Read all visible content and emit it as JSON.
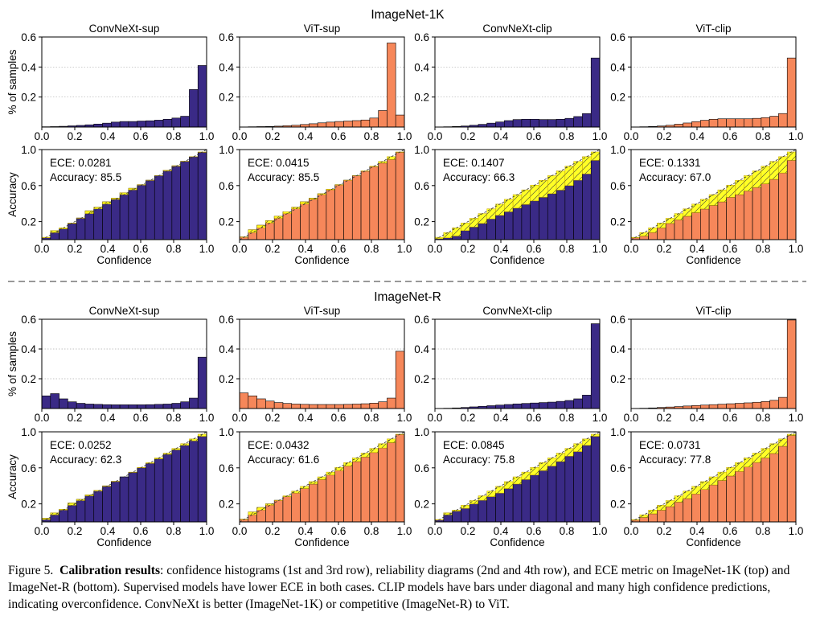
{
  "figure": {
    "sections": [
      {
        "title": "ImageNet-1K"
      },
      {
        "title": "ImageNet-R"
      }
    ],
    "panel_titles": [
      "ConvNeXt-sup",
      "ViT-sup",
      "ConvNeXt-clip",
      "ViT-clip"
    ],
    "hist_ylabel": "% of samples",
    "rel_ylabel": "Accuracy",
    "rel_xlabel": "Confidence",
    "hist_yticks": [
      "0.2",
      "0.4",
      "0.6"
    ],
    "rel_yticks": [
      "0.2",
      "0.6",
      "1.0"
    ],
    "xticks": [
      "0.0",
      "0.2",
      "0.4",
      "0.6",
      "0.8",
      "1.0"
    ],
    "ece_prefix": "ECE: ",
    "acc_prefix": "Accuracy: ",
    "colors": {
      "convnext": "#3a2a86",
      "vit": "#f6875a",
      "gap": "#ffff1a",
      "dashed": "#999999"
    }
  },
  "caption": {
    "label": "Figure 5.",
    "bold": "Calibration results",
    "text": ": confidence histograms (1st and 3rd row), reliability diagrams (2nd and 4th row), and ECE metric on ImageNet-1K (top) and ImageNet-R (bottom). Supervised models have lower ECE in both cases. CLIP models have bars under diagonal and many high confidence predictions, indicating overconfidence. ConvNeXt is better (ImageNet-1K) or competitive (ImageNet-R) to ViT."
  },
  "chart_data": [
    {
      "type": "bar",
      "section": "ImageNet-1K",
      "title": "ConvNeXt-sup",
      "kind": "histogram",
      "model": "convnext",
      "xlabel": "",
      "ylabel": "% of samples",
      "xlim": [
        0,
        1
      ],
      "ylim": [
        0,
        0.6
      ],
      "values": [
        0.002,
        0.003,
        0.005,
        0.008,
        0.011,
        0.015,
        0.02,
        0.026,
        0.033,
        0.037,
        0.037,
        0.04,
        0.042,
        0.046,
        0.052,
        0.06,
        0.072,
        0.25,
        0.41
      ]
    },
    {
      "type": "bar",
      "section": "ImageNet-1K",
      "title": "ViT-sup",
      "kind": "histogram",
      "model": "vit",
      "xlabel": "",
      "ylabel": "",
      "xlim": [
        0,
        1
      ],
      "ylim": [
        0,
        0.6
      ],
      "values": [
        0.001,
        0.002,
        0.003,
        0.004,
        0.006,
        0.009,
        0.012,
        0.017,
        0.022,
        0.028,
        0.033,
        0.037,
        0.04,
        0.043,
        0.047,
        0.06,
        0.11,
        0.56,
        0.08
      ]
    },
    {
      "type": "bar",
      "section": "ImageNet-1K",
      "title": "ConvNeXt-clip",
      "kind": "histogram",
      "model": "convnext",
      "xlabel": "",
      "ylabel": "",
      "xlim": [
        0,
        1
      ],
      "ylim": [
        0,
        0.6
      ],
      "values": [
        0.001,
        0.002,
        0.004,
        0.007,
        0.012,
        0.018,
        0.026,
        0.034,
        0.043,
        0.05,
        0.052,
        0.052,
        0.05,
        0.05,
        0.052,
        0.058,
        0.07,
        0.09,
        0.46
      ]
    },
    {
      "type": "bar",
      "section": "ImageNet-1K",
      "title": "ViT-clip",
      "kind": "histogram",
      "model": "vit",
      "xlabel": "",
      "ylabel": "",
      "xlim": [
        0,
        1
      ],
      "ylim": [
        0,
        0.6
      ],
      "values": [
        0.001,
        0.002,
        0.004,
        0.007,
        0.012,
        0.019,
        0.027,
        0.036,
        0.045,
        0.052,
        0.055,
        0.055,
        0.055,
        0.055,
        0.058,
        0.063,
        0.072,
        0.09,
        0.46
      ]
    },
    {
      "type": "bar",
      "section": "ImageNet-1K",
      "title": "ConvNeXt-sup",
      "kind": "reliability",
      "model": "convnext",
      "xlabel": "Confidence",
      "ylabel": "Accuracy",
      "xlim": [
        0,
        1
      ],
      "ylim": [
        0,
        1
      ],
      "ece": "0.0281",
      "accuracy": "85.5",
      "values": [
        0.02,
        0.1,
        0.12,
        0.18,
        0.24,
        0.32,
        0.36,
        0.42,
        0.46,
        0.52,
        0.57,
        0.61,
        0.66,
        0.71,
        0.77,
        0.82,
        0.87,
        0.92,
        0.97
      ]
    },
    {
      "type": "bar",
      "section": "ImageNet-1K",
      "title": "ViT-sup",
      "kind": "reliability",
      "model": "vit",
      "xlabel": "Confidence",
      "ylabel": "",
      "xlim": [
        0,
        1
      ],
      "ylim": [
        0,
        1
      ],
      "ece": "0.0415",
      "accuracy": "85.5",
      "values": [
        0.03,
        0.11,
        0.16,
        0.21,
        0.26,
        0.31,
        0.36,
        0.42,
        0.46,
        0.51,
        0.56,
        0.61,
        0.66,
        0.71,
        0.76,
        0.81,
        0.85,
        0.89,
        0.97
      ]
    },
    {
      "type": "bar",
      "section": "ImageNet-1K",
      "title": "ConvNeXt-clip",
      "kind": "reliability",
      "model": "convnext",
      "xlabel": "Confidence",
      "ylabel": "",
      "xlim": [
        0,
        1
      ],
      "ylim": [
        0,
        1
      ],
      "ece": "0.1407",
      "accuracy": "66.3",
      "values": [
        0.01,
        0.02,
        0.04,
        0.1,
        0.14,
        0.18,
        0.23,
        0.27,
        0.31,
        0.35,
        0.39,
        0.43,
        0.47,
        0.51,
        0.55,
        0.6,
        0.66,
        0.73,
        0.88
      ]
    },
    {
      "type": "bar",
      "section": "ImageNet-1K",
      "title": "ViT-clip",
      "kind": "reliability",
      "model": "vit",
      "xlabel": "Confidence",
      "ylabel": "",
      "xlim": [
        0,
        1
      ],
      "ylim": [
        0,
        1
      ],
      "ece": "0.1331",
      "accuracy": "67.0",
      "values": [
        0.02,
        0.04,
        0.08,
        0.13,
        0.18,
        0.22,
        0.26,
        0.3,
        0.34,
        0.38,
        0.42,
        0.47,
        0.5,
        0.54,
        0.58,
        0.62,
        0.67,
        0.74,
        0.88
      ]
    },
    {
      "type": "bar",
      "section": "ImageNet-R",
      "title": "ConvNeXt-sup",
      "kind": "histogram",
      "model": "convnext",
      "xlabel": "",
      "ylabel": "% of samples",
      "xlim": [
        0,
        1
      ],
      "ylim": [
        0,
        0.6
      ],
      "values": [
        0.085,
        0.1,
        0.065,
        0.045,
        0.035,
        0.03,
        0.028,
        0.026,
        0.025,
        0.025,
        0.025,
        0.025,
        0.026,
        0.028,
        0.03,
        0.035,
        0.045,
        0.07,
        0.345
      ]
    },
    {
      "type": "bar",
      "section": "ImageNet-R",
      "title": "ViT-sup",
      "kind": "histogram",
      "model": "vit",
      "xlabel": "",
      "ylabel": "",
      "xlim": [
        0,
        1
      ],
      "ylim": [
        0,
        0.6
      ],
      "values": [
        0.105,
        0.085,
        0.065,
        0.05,
        0.04,
        0.034,
        0.03,
        0.028,
        0.027,
        0.027,
        0.027,
        0.027,
        0.028,
        0.03,
        0.032,
        0.036,
        0.045,
        0.07,
        0.385
      ]
    },
    {
      "type": "bar",
      "section": "ImageNet-R",
      "title": "ConvNeXt-clip",
      "kind": "histogram",
      "model": "convnext",
      "xlabel": "",
      "ylabel": "",
      "xlim": [
        0,
        1
      ],
      "ylim": [
        0,
        0.6
      ],
      "values": [
        0.001,
        0.002,
        0.004,
        0.007,
        0.011,
        0.015,
        0.019,
        0.023,
        0.027,
        0.031,
        0.034,
        0.037,
        0.04,
        0.043,
        0.048,
        0.054,
        0.065,
        0.09,
        0.57
      ]
    },
    {
      "type": "bar",
      "section": "ImageNet-R",
      "title": "ViT-clip",
      "kind": "histogram",
      "model": "vit",
      "xlabel": "",
      "ylabel": "",
      "xlim": [
        0,
        1
      ],
      "ylim": [
        0,
        0.6
      ],
      "values": [
        0.001,
        0.002,
        0.004,
        0.007,
        0.01,
        0.013,
        0.017,
        0.02,
        0.023,
        0.026,
        0.029,
        0.032,
        0.035,
        0.038,
        0.042,
        0.047,
        0.055,
        0.075,
        0.595
      ]
    },
    {
      "type": "bar",
      "section": "ImageNet-R",
      "title": "ConvNeXt-sup",
      "kind": "reliability",
      "model": "convnext",
      "xlabel": "Confidence",
      "ylabel": "Accuracy",
      "xlim": [
        0,
        1
      ],
      "ylim": [
        0,
        1
      ],
      "ece": "0.0252",
      "accuracy": "62.3",
      "values": [
        0.04,
        0.1,
        0.14,
        0.21,
        0.25,
        0.3,
        0.35,
        0.4,
        0.45,
        0.5,
        0.55,
        0.6,
        0.65,
        0.7,
        0.75,
        0.8,
        0.85,
        0.9,
        0.95
      ]
    },
    {
      "type": "bar",
      "section": "ImageNet-R",
      "title": "ViT-sup",
      "kind": "reliability",
      "model": "vit",
      "xlabel": "Confidence",
      "ylabel": "",
      "xlim": [
        0,
        1
      ],
      "ylim": [
        0,
        1
      ],
      "ece": "0.0432",
      "accuracy": "61.6",
      "values": [
        0.03,
        0.11,
        0.16,
        0.2,
        0.24,
        0.28,
        0.32,
        0.37,
        0.42,
        0.47,
        0.52,
        0.57,
        0.62,
        0.67,
        0.72,
        0.77,
        0.82,
        0.88,
        0.97
      ]
    },
    {
      "type": "bar",
      "section": "ImageNet-R",
      "title": "ConvNeXt-clip",
      "kind": "reliability",
      "model": "convnext",
      "xlabel": "Confidence",
      "ylabel": "",
      "xlim": [
        0,
        1
      ],
      "ylim": [
        0,
        1
      ],
      "ece": "0.0845",
      "accuracy": "75.8",
      "values": [
        0.02,
        0.1,
        0.12,
        0.15,
        0.2,
        0.24,
        0.28,
        0.32,
        0.37,
        0.42,
        0.47,
        0.52,
        0.57,
        0.62,
        0.67,
        0.73,
        0.78,
        0.85,
        0.95
      ]
    },
    {
      "type": "bar",
      "section": "ImageNet-R",
      "title": "ViT-clip",
      "kind": "reliability",
      "model": "vit",
      "xlabel": "Confidence",
      "ylabel": "",
      "xlim": [
        0,
        1
      ],
      "ylim": [
        0,
        1
      ],
      "ece": "0.0731",
      "accuracy": "77.8",
      "values": [
        0.02,
        0.05,
        0.09,
        0.13,
        0.17,
        0.22,
        0.26,
        0.31,
        0.36,
        0.41,
        0.46,
        0.51,
        0.56,
        0.61,
        0.66,
        0.71,
        0.76,
        0.84,
        0.96
      ]
    }
  ]
}
